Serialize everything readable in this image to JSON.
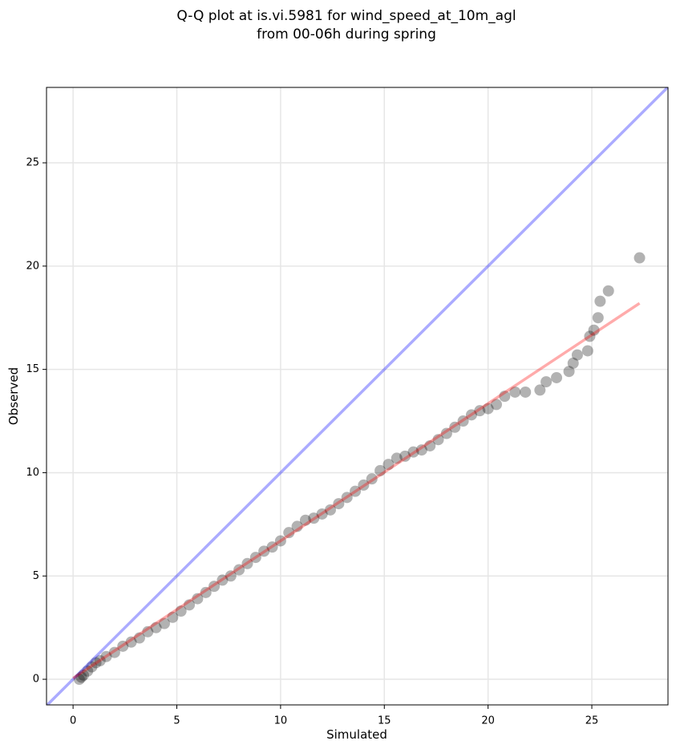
{
  "chart_data": {
    "type": "scatter",
    "title": [
      "Q-Q plot at is.vi.5981 for wind_speed_at_10m_agl",
      "from 00-06h during spring"
    ],
    "xlabel": "Simulated",
    "ylabel": "Observed",
    "xlim": [
      -1.28,
      28.67
    ],
    "ylim": [
      -1.24,
      28.65
    ],
    "xticks": [
      0,
      5,
      10,
      15,
      20,
      25
    ],
    "yticks": [
      0,
      5,
      10,
      15,
      20,
      25
    ],
    "grid": true,
    "series": [
      {
        "color": "#000000",
        "x": [
          0.3,
          0.4,
          0.5,
          0.7,
          0.9,
          1.1,
          1.3,
          1.6,
          2.0,
          2.4,
          2.8,
          3.2,
          3.6,
          4.0,
          4.4,
          4.8,
          5.2,
          5.6,
          6.0,
          6.4,
          6.8,
          7.2,
          7.6,
          8.0,
          8.4,
          8.8,
          9.2,
          9.6,
          10.0,
          10.4,
          10.8,
          11.2,
          11.6,
          12.0,
          12.4,
          12.8,
          13.2,
          13.6,
          14.0,
          14.4,
          14.8,
          15.2,
          15.6,
          16.0,
          16.4,
          16.8,
          17.2,
          17.6,
          18.0,
          18.4,
          18.8,
          19.2,
          19.6,
          20.0,
          20.4,
          20.8,
          21.3,
          21.8,
          22.5,
          22.8,
          23.3,
          23.9,
          24.1,
          24.3,
          24.8,
          24.9,
          25.1,
          25.3,
          25.4,
          25.8,
          27.3
        ],
        "y": [
          0.0,
          0.1,
          0.2,
          0.4,
          0.6,
          0.8,
          0.9,
          1.1,
          1.3,
          1.6,
          1.8,
          2.0,
          2.3,
          2.5,
          2.7,
          3.0,
          3.3,
          3.6,
          3.9,
          4.2,
          4.5,
          4.8,
          5.0,
          5.3,
          5.6,
          5.9,
          6.2,
          6.4,
          6.7,
          7.1,
          7.4,
          7.7,
          7.8,
          8.0,
          8.2,
          8.5,
          8.8,
          9.1,
          9.4,
          9.7,
          10.1,
          10.4,
          10.7,
          10.8,
          11.0,
          11.1,
          11.3,
          11.6,
          11.9,
          12.2,
          12.5,
          12.8,
          13.0,
          13.1,
          13.3,
          13.7,
          13.9,
          13.9,
          14.0,
          14.4,
          14.6,
          14.9,
          15.3,
          15.7,
          15.9,
          16.6,
          16.9,
          17.5,
          18.3,
          18.8,
          20.4
        ]
      }
    ],
    "lines": [
      {
        "color": "#0000ff",
        "x": [
          -1.28,
          28.67
        ],
        "y": [
          -1.28,
          28.67
        ]
      },
      {
        "color": "#ff0000",
        "x": [
          0.0,
          27.3
        ],
        "y": [
          0.05,
          18.2
        ]
      }
    ]
  }
}
